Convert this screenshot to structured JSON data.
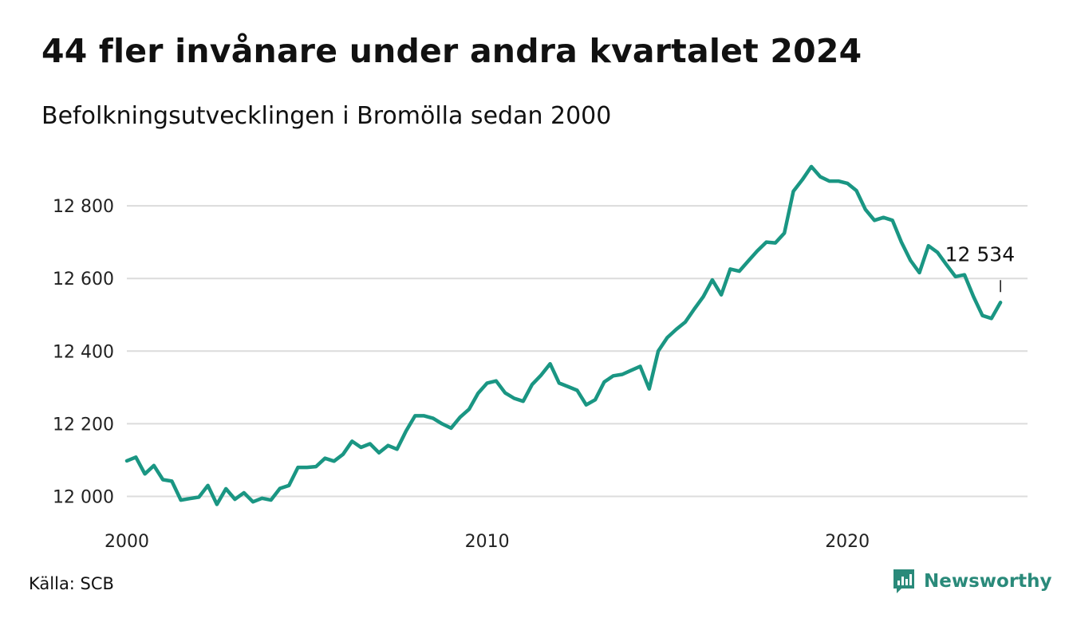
{
  "header": {
    "title": "44 fler invånare under andra kvartalet 2024",
    "subtitle": "Befolkningsutvecklingen i Bromölla sedan 2000"
  },
  "footer": {
    "source": "Källa: SCB",
    "brand": "Newsworthy",
    "brand_icon": "newsworthy-logo-icon"
  },
  "colors": {
    "line": "#1a9683",
    "grid": "#dcdcdc",
    "brand": "#2a8a7a"
  },
  "chart_data": {
    "type": "line",
    "xlim": [
      2000,
      2025
    ],
    "ylim": [
      11980,
      12930
    ],
    "x_ticks": [
      2000,
      2010,
      2020
    ],
    "x_tick_labels": [
      "2000",
      "2010",
      "2020"
    ],
    "y_ticks": [
      12000,
      12200,
      12400,
      12600,
      12800
    ],
    "y_tick_labels": [
      "12 000",
      "12 200",
      "12 400",
      "12 600",
      "12 800"
    ],
    "grid": "horizontal",
    "annotation": {
      "x": 2024.25,
      "y": 12534,
      "label": "12 534"
    },
    "series": [
      {
        "x": [
          2000.0,
          2000.25,
          2000.5,
          2000.75,
          2001.0,
          2001.25,
          2001.5,
          2001.75,
          2002.0,
          2002.25,
          2002.5,
          2002.75,
          2003.0,
          2003.25,
          2003.5,
          2003.75,
          2004.0,
          2004.25,
          2004.5,
          2004.75,
          2005.0,
          2005.25,
          2005.5,
          2005.75,
          2006.0,
          2006.25,
          2006.5,
          2006.75,
          2007.0,
          2007.25,
          2007.5,
          2007.75,
          2008.0,
          2008.25,
          2008.5,
          2008.75,
          2009.0,
          2009.25,
          2009.5,
          2009.75,
          2010.0,
          2010.25,
          2010.5,
          2010.75,
          2011.0,
          2011.25,
          2011.5,
          2011.75,
          2012.0,
          2012.25,
          2012.5,
          2012.75,
          2013.0,
          2013.25,
          2013.5,
          2013.75,
          2014.0,
          2014.25,
          2014.5,
          2014.75,
          2015.0,
          2015.25,
          2015.5,
          2015.75,
          2016.0,
          2016.25,
          2016.5,
          2016.75,
          2017.0,
          2017.25,
          2017.5,
          2017.75,
          2018.0,
          2018.25,
          2018.5,
          2018.75,
          2019.0,
          2019.25,
          2019.5,
          2019.75,
          2020.0,
          2020.25,
          2020.5,
          2020.75,
          2021.0,
          2021.25,
          2021.5,
          2021.75,
          2022.0,
          2022.25,
          2022.5,
          2022.75,
          2023.0,
          2023.25,
          2023.5,
          2023.75,
          2024.0,
          2024.25
        ],
        "y": [
          12098,
          12108,
          12062,
          12085,
          12046,
          12042,
          11990,
          11994,
          11998,
          12030,
          11978,
          12021,
          11992,
          12010,
          11985,
          11995,
          11990,
          12022,
          12030,
          12080,
          12080,
          12082,
          12105,
          12097,
          12116,
          12152,
          12135,
          12145,
          12120,
          12140,
          12130,
          12180,
          12222,
          12222,
          12215,
          12200,
          12188,
          12218,
          12240,
          12284,
          12312,
          12318,
          12285,
          12270,
          12262,
          12308,
          12334,
          12365,
          12312,
          12302,
          12292,
          12252,
          12266,
          12315,
          12332,
          12336,
          12347,
          12358,
          12296,
          12400,
          12437,
          12460,
          12480,
          12516,
          12550,
          12596,
          12555,
          12626,
          12620,
          12648,
          12676,
          12700,
          12698,
          12725,
          12840,
          12872,
          12908,
          12880,
          12868,
          12868,
          12862,
          12842,
          12790,
          12760,
          12768,
          12760,
          12700,
          12650,
          12616,
          12690,
          12672,
          12638,
          12605,
          12610,
          12550,
          12498,
          12490,
          12534
        ]
      }
    ]
  }
}
